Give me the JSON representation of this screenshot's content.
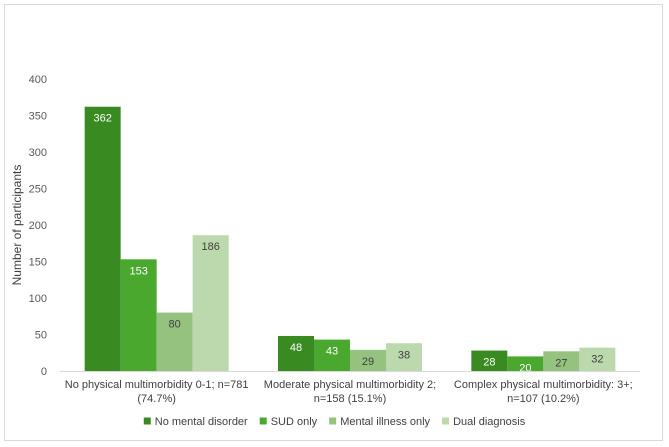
{
  "chart_data": {
    "type": "bar",
    "title": "",
    "xlabel": "",
    "ylabel": "Number of participants",
    "ylim": [
      0,
      400
    ],
    "yticks": [
      0,
      50,
      100,
      150,
      200,
      250,
      300,
      350,
      400
    ],
    "grid": false,
    "legend_position": "bottom",
    "categories": [
      [
        "No physical multimorbidity 0-1; n=781",
        "(74.7%)"
      ],
      [
        "Moderate physical multimorbidity 2;",
        "n=158 (15.1%)"
      ],
      [
        "Complex physical multimorbidity: 3+;",
        "n=107 (10.2%)"
      ]
    ],
    "series": [
      {
        "name": "No mental disorder",
        "color": "#3a8a22",
        "label_color": "#ffffff",
        "values": [
          362,
          48,
          28
        ]
      },
      {
        "name": "SUD only",
        "color": "#4aa82e",
        "label_color": "#ffffff",
        "values": [
          153,
          43,
          20
        ]
      },
      {
        "name": "Mental illness only",
        "color": "#95c27f",
        "label_color": "#404040",
        "values": [
          80,
          29,
          27
        ]
      },
      {
        "name": "Dual diagnosis",
        "color": "#bcd8ad",
        "label_color": "#404040",
        "values": [
          186,
          38,
          32
        ]
      }
    ]
  }
}
